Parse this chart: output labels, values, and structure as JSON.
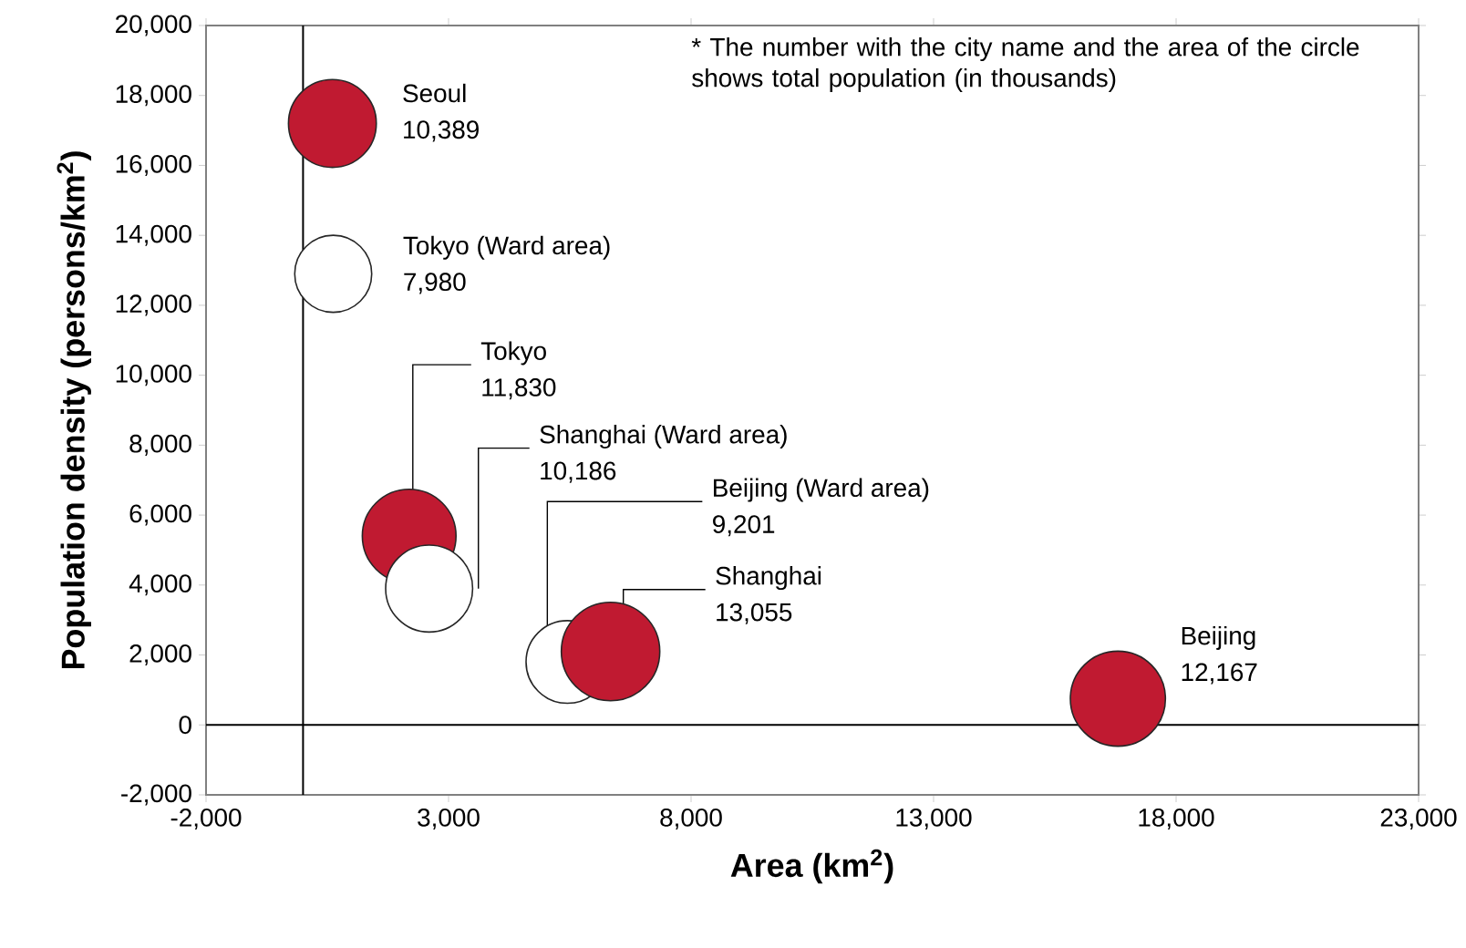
{
  "chart_data": {
    "type": "bubble",
    "xlabel": "Area (km$^{2}$)",
    "ylabel": "Population density (persons/km$^{2}$)",
    "xlim": [
      -2000,
      23000
    ],
    "ylim": [
      -2000,
      20000
    ],
    "xticks": [
      {
        "value": -2000,
        "label": "-2,000"
      },
      {
        "value": 3000,
        "label": "3,000"
      },
      {
        "value": 8000,
        "label": "8,000"
      },
      {
        "value": 13000,
        "label": "13,000"
      },
      {
        "value": 18000,
        "label": "18,000"
      },
      {
        "value": 23000,
        "label": "23,000"
      }
    ],
    "yticks": [
      {
        "value": -2000,
        "label": "-2,000"
      },
      0,
      {
        "value": 2000,
        "label": "2,000"
      },
      {
        "value": 4000,
        "label": "4,000"
      },
      {
        "value": 6000,
        "label": "6,000"
      },
      {
        "value": 8000,
        "label": "8,000"
      },
      {
        "value": 10000,
        "label": "10,000"
      },
      {
        "value": 12000,
        "label": "12,000"
      },
      {
        "value": 14000,
        "label": "14,000"
      },
      {
        "value": 16000,
        "label": "16,000"
      },
      {
        "value": 18000,
        "label": "18,000"
      },
      {
        "value": 20000,
        "label": "20,000"
      }
    ],
    "series": [
      {
        "name": "Seoul",
        "color": "#c01a31",
        "x": [
          605
        ],
        "values": [
          17200
        ],
        "sizes": [
          10389
        ],
        "value_labels": [
          "10,389"
        ]
      },
      {
        "name": "Tokyo (Ward area)",
        "color": "#ffffff",
        "x": [
          622
        ],
        "values": [
          12900
        ],
        "sizes": [
          7980
        ],
        "value_labels": [
          "7,980"
        ]
      },
      {
        "name": "Tokyo",
        "color": "#c01a31",
        "x": [
          2188
        ],
        "values": [
          5400
        ],
        "sizes": [
          11830
        ],
        "value_labels": [
          "11,830"
        ]
      },
      {
        "name": "Shanghai (Ward area)",
        "color": "#ffffff",
        "x": [
          2600
        ],
        "values": [
          3900
        ],
        "sizes": [
          10186
        ],
        "value_labels": [
          "10,186"
        ]
      },
      {
        "name": "Beijing (Ward area)",
        "color": "#ffffff",
        "x": [
          5450
        ],
        "values": [
          1800
        ],
        "sizes": [
          9201
        ],
        "value_labels": [
          "9,201"
        ]
      },
      {
        "name": "Shanghai",
        "color": "#c01a31",
        "x": [
          6340
        ],
        "values": [
          2100
        ],
        "sizes": [
          13055
        ],
        "value_labels": [
          "13,055"
        ]
      },
      {
        "name": "Beijing",
        "color": "#c01a31",
        "x": [
          16800
        ],
        "values": [
          750
        ],
        "sizes": [
          12167
        ],
        "value_labels": [
          "12,167"
        ]
      }
    ],
    "annotations": [
      "* The number with the city name and the area of the circle shows total population (in thousands)"
    ]
  }
}
